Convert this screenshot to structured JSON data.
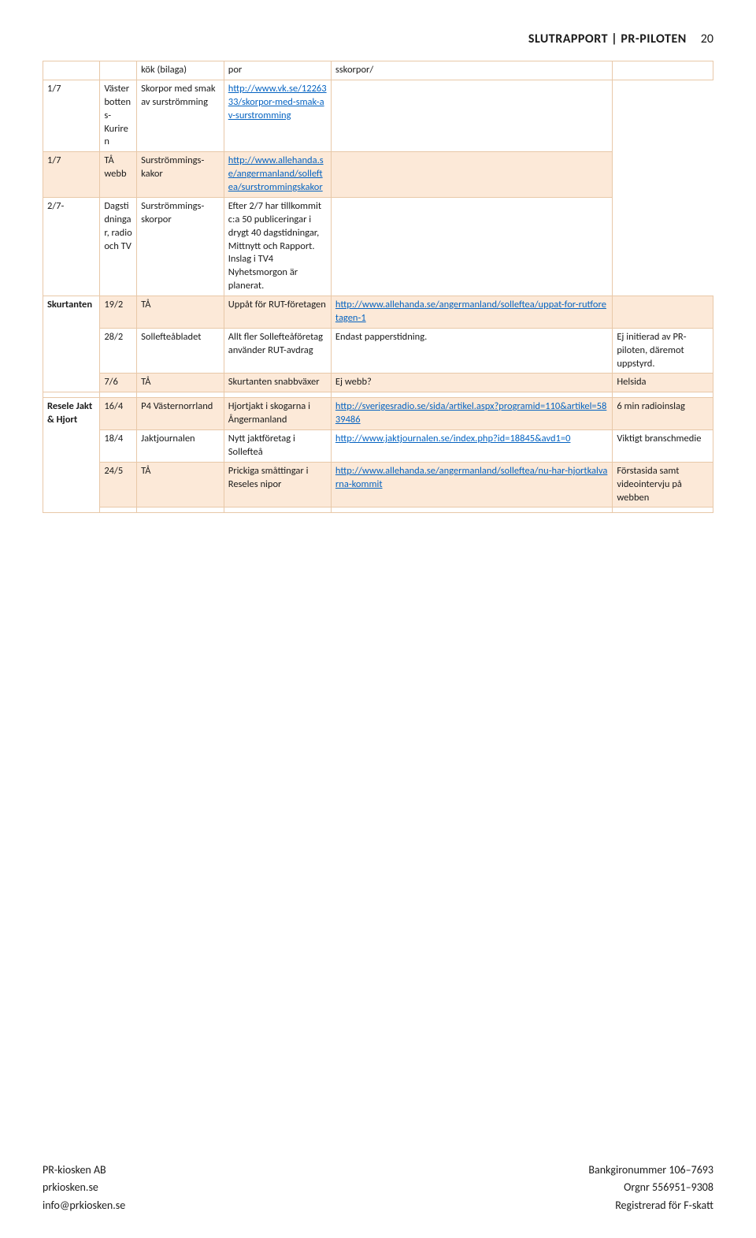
{
  "colors": {
    "shade_bg": "#fce9d8",
    "border": "#e8c8a8",
    "link": "#0563c1",
    "text": "#1a1a1a",
    "page_bg": "#ffffff"
  },
  "header": {
    "title": "SLUTRAPPORT | PR-PILOTEN",
    "page_number": "20"
  },
  "col_widths_pct": [
    8.5,
    5.5,
    13,
    16,
    42,
    15
  ],
  "rows": [
    {
      "shade": false,
      "group": "",
      "group_rowspan": 0,
      "c1": "",
      "c2": "kök (bilaga)",
      "c3": "por",
      "c4": {
        "text": "sskorpor/"
      },
      "c5": ""
    },
    {
      "shade": false,
      "group": null,
      "c1": "1/7",
      "c2": "Västerbottens-Kuriren",
      "c3": "Skorpor med smak av surströmming",
      "c4": {
        "link": true,
        "text": "http://www.vk.se/1226333/skorpor-med-smak-av-surstromming"
      },
      "c5": ""
    },
    {
      "shade": true,
      "group": null,
      "c1": "1/7",
      "c2": "TÅ webb",
      "c3": "Surströmmings-kakor",
      "c4": {
        "link": true,
        "text": "http://www.allehanda.se/angermanland/solleftea/surstrommingskakor"
      },
      "c5": ""
    },
    {
      "shade": false,
      "group": null,
      "c1": "2/7-",
      "c2": "Dagstidningar, radio och TV",
      "c3": "Surströmmings-skorpor",
      "c4": {
        "text": "Efter 2/7 har tillkommit c:a 50 publiceringar i drygt 40 dagstidningar, Mittnytt och Rapport. Inslag i TV4 Nyhetsmorgon är planerat."
      },
      "c5": ""
    },
    {
      "shade": true,
      "group": "Skurtanten",
      "group_rowspan": 3,
      "c1": "19/2",
      "c2": "TÅ",
      "c3": "Uppåt för RUT-företagen",
      "c4": {
        "link": true,
        "text": "http://www.allehanda.se/angermanland/solleftea/uppat-for-rutforetagen-1"
      },
      "c5": ""
    },
    {
      "shade": false,
      "group": null,
      "c1": "28/2",
      "c2": "Sollefteåbladet",
      "c3": "Allt fler Sollefteåföretag använder RUT-avdrag",
      "c4": {
        "text": "Endast papperstidning."
      },
      "c5": "Ej initierad av PR-piloten, däremot uppstyrd."
    },
    {
      "shade": true,
      "group": null,
      "c1": "7/6",
      "c2": "TÅ",
      "c3": "Skurtanten snabbväxer",
      "c4": {
        "text": "Ej webb?"
      },
      "c5": "Helsida"
    },
    {
      "shade": false,
      "group": "",
      "group_rowspan": 1,
      "c1": "",
      "c2": "",
      "c3": "",
      "c4": {
        "text": ""
      },
      "c5": ""
    },
    {
      "shade": true,
      "group": "Resele Jakt & Hjort",
      "group_rowspan": 4,
      "c1": "16/4",
      "c2": "P4 Västernorrland",
      "c3": "Hjortjakt i skogarna i Ångermanland",
      "c4": {
        "link": true,
        "text": "http://sverigesradio.se/sida/artikel.aspx?programid=110&artikel=5839486"
      },
      "c5": "6 min radioinslag"
    },
    {
      "shade": false,
      "group": null,
      "c1": "18/4",
      "c2": "Jaktjournalen",
      "c3": "Nytt jaktföretag i Sollefteå",
      "c4": {
        "link": true,
        "text": "http://www.jaktjournalen.se/index.php?id=18845&avd1=0"
      },
      "c5": "Viktigt branschmedie"
    },
    {
      "shade": true,
      "group": null,
      "c1": "24/5",
      "c2": "TÅ",
      "c3": "Prickiga småttingar i Reseles nipor",
      "c4": {
        "link": true,
        "text": "http://www.allehanda.se/angermanland/solleftea/nu-har-hjortkalvarna-kommit"
      },
      "c5": "Förstasida samt videointervju på webben"
    },
    {
      "shade": false,
      "group": null,
      "c1": "",
      "c2": "",
      "c3": "",
      "c4": {
        "text": ""
      },
      "c5": ""
    }
  ],
  "footer": {
    "left": [
      "PR-kiosken AB",
      "prkiosken.se",
      "info@prkiosken.se"
    ],
    "right": [
      "Bankgironummer 106–7693",
      "Orgnr 556951–9308",
      "Registrerad för F-skatt"
    ]
  }
}
